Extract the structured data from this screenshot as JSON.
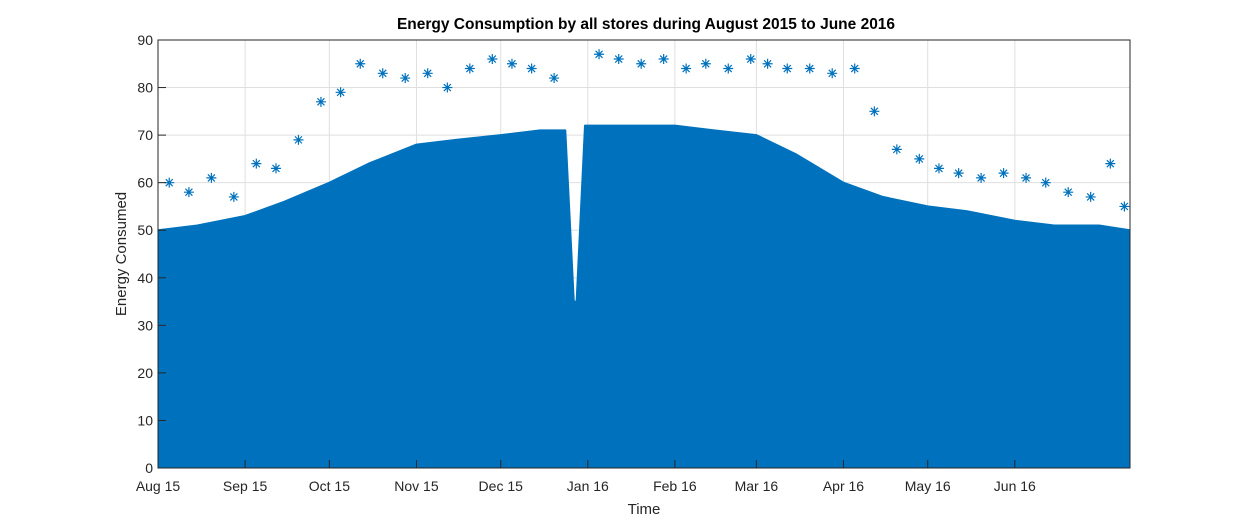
{
  "chart_data": {
    "type": "scatter",
    "title": "Energy Consumption by all stores during August 2015 to June 2016",
    "xlabel": "Time",
    "ylabel": "Energy Consumed",
    "xlim": [
      "2015-08-01",
      "2016-07-12"
    ],
    "ylim": [
      0,
      90
    ],
    "yticks": [
      0,
      10,
      20,
      30,
      40,
      50,
      60,
      70,
      80,
      90
    ],
    "xticks": [
      {
        "date": "2015-08-01",
        "label": "Aug 15"
      },
      {
        "date": "2015-09-01",
        "label": "Sep 15"
      },
      {
        "date": "2015-10-01",
        "label": "Oct 15"
      },
      {
        "date": "2015-11-01",
        "label": "Nov 15"
      },
      {
        "date": "2015-12-01",
        "label": "Dec 15"
      },
      {
        "date": "2016-01-01",
        "label": "Jan 16"
      },
      {
        "date": "2016-02-01",
        "label": "Feb 16"
      },
      {
        "date": "2016-03-01",
        "label": "Mar 16"
      },
      {
        "date": "2016-04-01",
        "label": "Apr 16"
      },
      {
        "date": "2016-05-01",
        "label": "May 16"
      },
      {
        "date": "2016-06-01",
        "label": "Jun 16"
      }
    ],
    "grid": true,
    "marker": "*",
    "color": "#0072bd",
    "series": [
      {
        "dense_band_upper_envelope": {
          "x": [
            "2015-08-01",
            "2015-08-15",
            "2015-09-01",
            "2015-09-15",
            "2015-10-01",
            "2015-10-15",
            "2015-11-01",
            "2015-11-15",
            "2015-12-01",
            "2015-12-15",
            "2015-12-24",
            "2015-12-27",
            "2015-12-28",
            "2015-12-31",
            "2016-01-15",
            "2016-02-01",
            "2016-02-15",
            "2016-03-01",
            "2016-03-15",
            "2016-04-01",
            "2016-04-15",
            "2016-05-01",
            "2016-05-15",
            "2016-06-01",
            "2016-06-15",
            "2016-07-01",
            "2016-07-12"
          ],
          "y": [
            50,
            51,
            53,
            56,
            60,
            64,
            68,
            69,
            70,
            71,
            71,
            35,
            35,
            72,
            72,
            72,
            71,
            70,
            66,
            60,
            57,
            55,
            54,
            52,
            51,
            51,
            50
          ]
        },
        "upper_outliers": {
          "x": [
            "2015-08-05",
            "2015-08-12",
            "2015-08-20",
            "2015-08-28",
            "2015-09-05",
            "2015-09-12",
            "2015-09-20",
            "2015-09-28",
            "2015-10-05",
            "2015-10-12",
            "2015-10-20",
            "2015-10-28",
            "2015-11-05",
            "2015-11-12",
            "2015-11-20",
            "2015-11-28",
            "2015-12-05",
            "2015-12-12",
            "2015-12-20",
            "2016-01-05",
            "2016-01-12",
            "2016-01-20",
            "2016-01-28",
            "2016-02-05",
            "2016-02-12",
            "2016-02-20",
            "2016-02-28",
            "2016-03-05",
            "2016-03-12",
            "2016-03-20",
            "2016-03-28",
            "2016-04-05",
            "2016-04-12",
            "2016-04-20",
            "2016-04-28",
            "2016-05-05",
            "2016-05-12",
            "2016-05-20",
            "2016-05-28",
            "2016-06-05",
            "2016-06-12",
            "2016-06-20",
            "2016-06-28",
            "2016-07-05",
            "2016-07-10"
          ],
          "y": [
            60,
            58,
            61,
            57,
            64,
            63,
            69,
            77,
            79,
            85,
            83,
            82,
            83,
            80,
            84,
            86,
            85,
            84,
            82,
            87,
            86,
            85,
            86,
            84,
            85,
            84,
            86,
            85,
            84,
            84,
            83,
            84,
            75,
            67,
            65,
            63,
            62,
            61,
            62,
            61,
            60,
            58,
            57,
            64,
            55
          ]
        }
      }
    ]
  }
}
